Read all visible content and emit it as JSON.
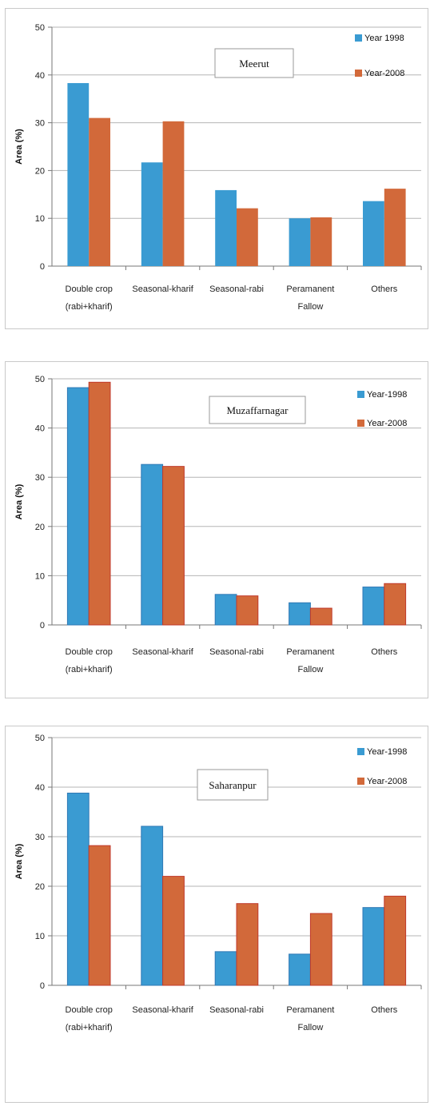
{
  "chart_data": [
    {
      "type": "bar",
      "title": "Meerut",
      "ylabel": "Area (%)",
      "ylim": [
        0,
        50
      ],
      "yticks": [
        "0",
        "10",
        "20",
        "30",
        "40",
        "50"
      ],
      "categories": [
        [
          "Double crop",
          "(rabi+kharif)"
        ],
        [
          "Seasonal-kharif"
        ],
        [
          "Seasonal-rabi"
        ],
        [
          "Peramanent",
          "Fallow"
        ],
        [
          "Others"
        ]
      ],
      "series": [
        {
          "name": "Year 1998",
          "color": "#3a9bd2",
          "values": [
            38.3,
            21.7,
            15.9,
            10.0,
            13.6
          ]
        },
        {
          "name": "Year-2008",
          "color": "#d2693a",
          "values": [
            31.0,
            30.3,
            12.1,
            10.2,
            16.2
          ]
        }
      ]
    },
    {
      "type": "bar",
      "title": "Muzaffarnagar",
      "ylabel": "Area (%)",
      "ylim": [
        0,
        50
      ],
      "yticks": [
        "0",
        "10",
        "20",
        "30",
        "40",
        "50"
      ],
      "categories": [
        [
          "Double crop",
          "(rabi+kharif)"
        ],
        [
          "Seasonal-kharif"
        ],
        [
          "Seasonal-rabi"
        ],
        [
          "Peramanent",
          "Fallow"
        ],
        [
          "Others"
        ]
      ],
      "series": [
        {
          "name": "Year-1998",
          "color": "#3a9bd2",
          "values": [
            48.2,
            32.6,
            6.2,
            4.5,
            7.7
          ]
        },
        {
          "name": "Year-2008",
          "color": "#d2693a",
          "values": [
            49.3,
            32.2,
            5.9,
            3.4,
            8.4
          ]
        }
      ]
    },
    {
      "type": "bar",
      "title": "Saharanpur",
      "ylabel": "Area (%)",
      "ylim": [
        0,
        50
      ],
      "yticks": [
        "0",
        "10",
        "20",
        "30",
        "40",
        "50"
      ],
      "categories": [
        [
          "Double crop",
          "(rabi+kharif)"
        ],
        [
          "Seasonal-kharif"
        ],
        [
          "Seasonal-rabi"
        ],
        [
          "Peramanent",
          "Fallow"
        ],
        [
          "Others"
        ]
      ],
      "series": [
        {
          "name": "Year-1998",
          "color": "#3a9bd2",
          "values": [
            38.8,
            32.1,
            6.8,
            6.3,
            15.7
          ]
        },
        {
          "name": "Year-2008",
          "color": "#d2693a",
          "values": [
            28.2,
            22.0,
            16.5,
            14.5,
            18.0
          ]
        }
      ]
    }
  ]
}
